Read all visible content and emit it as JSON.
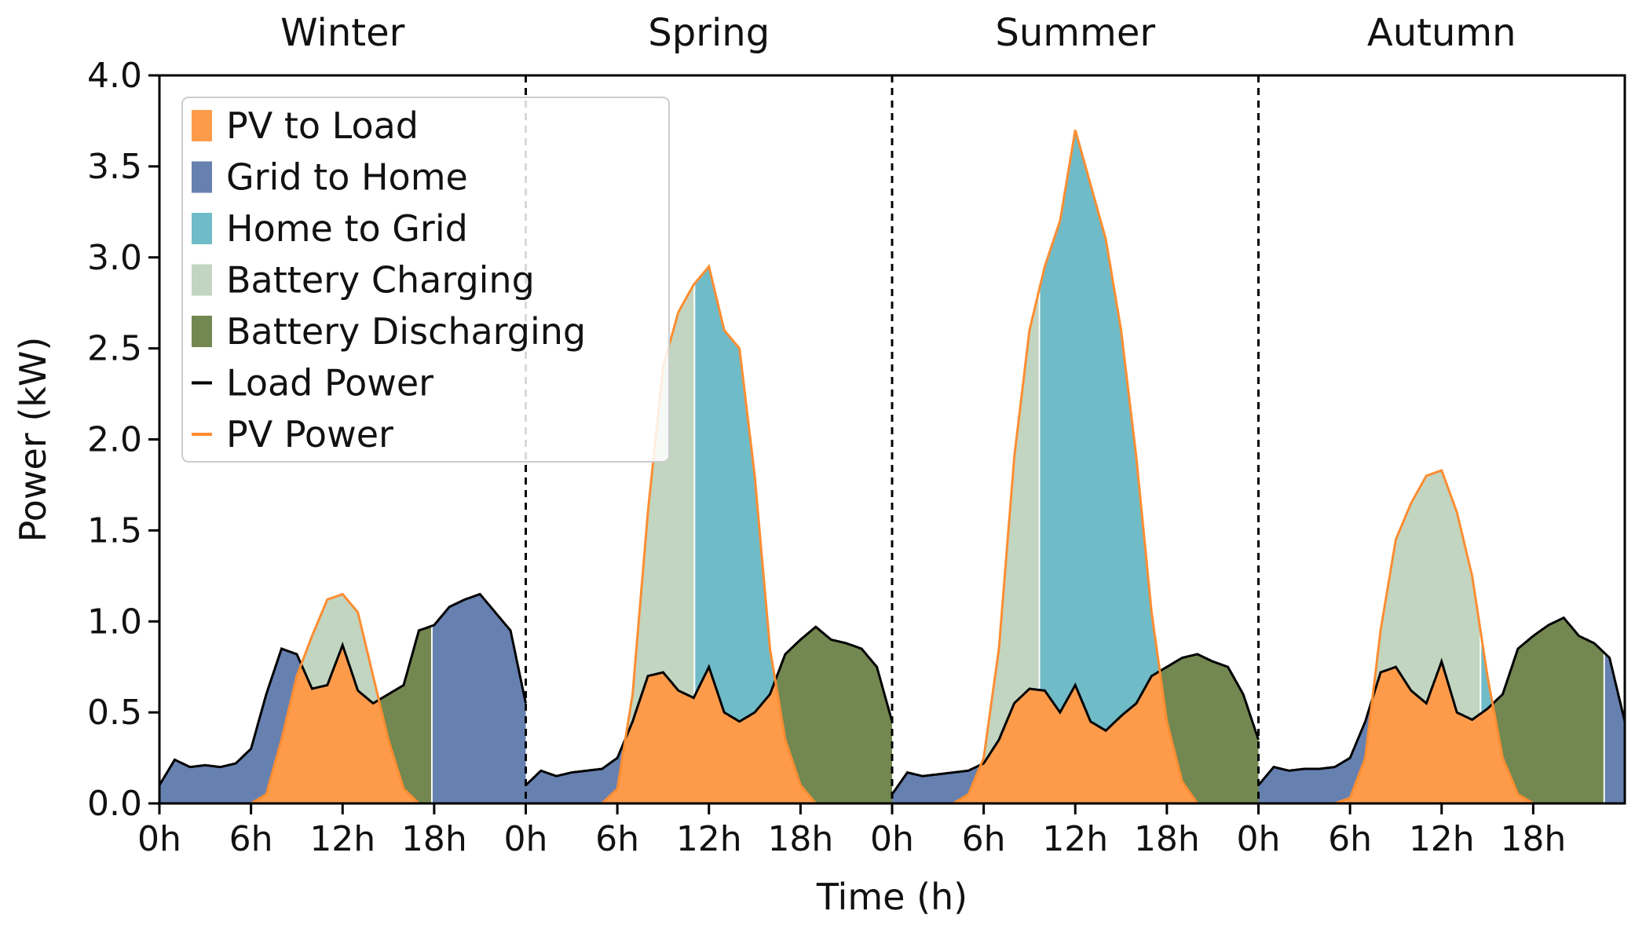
{
  "chart_data": {
    "type": "area",
    "xlabel": "Time (h)",
    "ylabel": "Power (kW)",
    "ylim": [
      0,
      4.0
    ],
    "y_ticks": [
      "0.0",
      "0.5",
      "1.0",
      "1.5",
      "2.0",
      "2.5",
      "3.0",
      "3.5",
      "4.0"
    ],
    "x_tick_labels": [
      "0h",
      "6h",
      "12h",
      "18h"
    ],
    "grid": false,
    "legend_position": "top-left",
    "seasons": [
      {
        "name": "Winter",
        "hours": [
          0,
          1,
          2,
          3,
          4,
          5,
          6,
          7,
          8,
          9,
          10,
          11,
          12,
          13,
          14,
          15,
          16,
          17,
          18,
          19,
          20,
          21,
          22,
          23,
          24
        ],
        "load": [
          0.1,
          0.24,
          0.2,
          0.21,
          0.2,
          0.22,
          0.3,
          0.6,
          0.85,
          0.82,
          0.63,
          0.65,
          0.87,
          0.62,
          0.55,
          0.6,
          0.65,
          0.95,
          0.98,
          1.08,
          1.12,
          1.15,
          1.05,
          0.95,
          0.55
        ],
        "pv": [
          0,
          0,
          0,
          0,
          0,
          0,
          0,
          0.05,
          0.35,
          0.7,
          0.92,
          1.12,
          1.15,
          1.05,
          0.7,
          0.35,
          0.08,
          0,
          0,
          0,
          0,
          0,
          0,
          0,
          0
        ],
        "charge_end_hour": 17.8
      },
      {
        "name": "Spring",
        "hours": [
          0,
          1,
          2,
          3,
          4,
          5,
          6,
          7,
          8,
          9,
          10,
          11,
          12,
          13,
          14,
          15,
          16,
          17,
          18,
          19,
          20,
          21,
          22,
          23,
          24
        ],
        "load": [
          0.1,
          0.18,
          0.15,
          0.17,
          0.18,
          0.19,
          0.25,
          0.45,
          0.7,
          0.72,
          0.62,
          0.58,
          0.75,
          0.5,
          0.45,
          0.5,
          0.6,
          0.82,
          0.9,
          0.97,
          0.9,
          0.88,
          0.85,
          0.75,
          0.45
        ],
        "pv": [
          0,
          0,
          0,
          0,
          0,
          0,
          0.08,
          0.6,
          1.6,
          2.4,
          2.7,
          2.85,
          2.95,
          2.6,
          2.5,
          1.8,
          0.85,
          0.35,
          0.1,
          0,
          0,
          0,
          0,
          0,
          0
        ],
        "charge_end_hour": 11.0
      },
      {
        "name": "Summer",
        "hours": [
          0,
          1,
          2,
          3,
          4,
          5,
          6,
          7,
          8,
          9,
          10,
          11,
          12,
          13,
          14,
          15,
          16,
          17,
          18,
          19,
          20,
          21,
          22,
          23,
          24
        ],
        "load": [
          0.05,
          0.17,
          0.15,
          0.16,
          0.17,
          0.18,
          0.22,
          0.35,
          0.55,
          0.63,
          0.62,
          0.5,
          0.65,
          0.45,
          0.4,
          0.48,
          0.55,
          0.7,
          0.75,
          0.8,
          0.82,
          0.78,
          0.75,
          0.6,
          0.35
        ],
        "pv": [
          0,
          0,
          0,
          0,
          0,
          0.05,
          0.25,
          0.85,
          1.9,
          2.6,
          2.95,
          3.2,
          3.7,
          3.4,
          3.1,
          2.6,
          1.9,
          1.05,
          0.45,
          0.12,
          0,
          0,
          0,
          0,
          0
        ],
        "charge_end_hour": 9.6
      },
      {
        "name": "Autumn",
        "hours": [
          0,
          1,
          2,
          3,
          4,
          5,
          6,
          7,
          8,
          9,
          10,
          11,
          12,
          13,
          14,
          15,
          16,
          17,
          18,
          19,
          20,
          21,
          22,
          23,
          24
        ],
        "load": [
          0.1,
          0.2,
          0.18,
          0.19,
          0.19,
          0.2,
          0.25,
          0.45,
          0.72,
          0.75,
          0.62,
          0.55,
          0.78,
          0.5,
          0.46,
          0.52,
          0.6,
          0.85,
          0.92,
          0.98,
          1.02,
          0.92,
          0.88,
          0.8,
          0.45
        ],
        "pv": [
          0,
          0,
          0,
          0,
          0,
          0,
          0.03,
          0.25,
          0.95,
          1.45,
          1.65,
          1.8,
          1.83,
          1.6,
          1.25,
          0.7,
          0.25,
          0.05,
          0,
          0,
          0,
          0,
          0,
          0,
          0
        ],
        "charge_end_hour": 14.5,
        "grid_to_home_start_hour": 22.7
      }
    ],
    "legend": [
      {
        "label": "PV to Load",
        "kind": "patch",
        "color": "#fd9b4b"
      },
      {
        "label": "Grid to Home",
        "kind": "patch",
        "color": "#6681b0"
      },
      {
        "label": "Home to Grid",
        "kind": "patch",
        "color": "#6fbbc7"
      },
      {
        "label": "Battery Charging",
        "kind": "patch",
        "color": "#c2d5c0"
      },
      {
        "label": "Battery Discharging",
        "kind": "patch",
        "color": "#738750"
      },
      {
        "label": "Load Power",
        "kind": "line",
        "color": "#000000"
      },
      {
        "label": "PV Power",
        "kind": "line",
        "color": "#fd8d32"
      }
    ]
  }
}
